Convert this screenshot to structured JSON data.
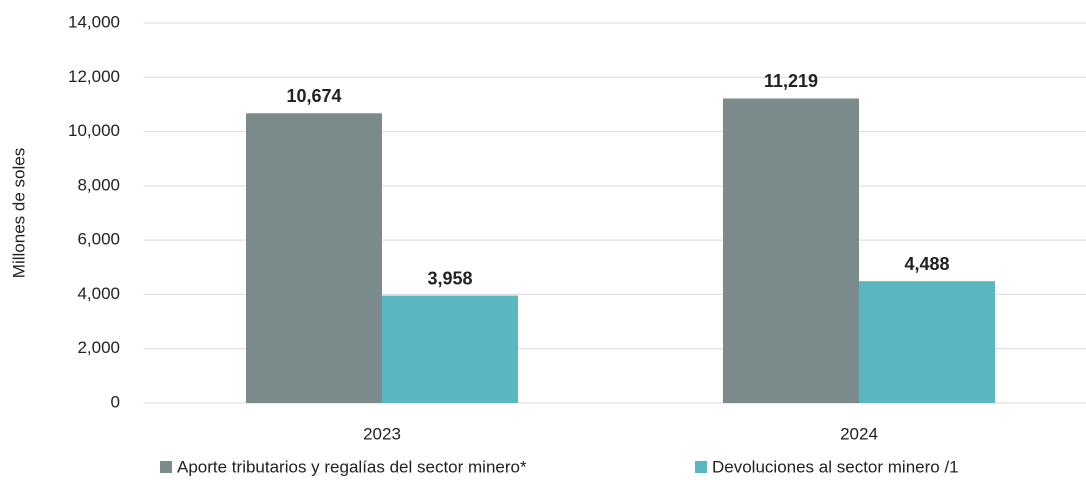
{
  "chart_data": {
    "type": "bar",
    "y_label": "Millones de soles",
    "categories": [
      "2023",
      "2024"
    ],
    "series": [
      {
        "name": "Aporte tributarios y regalías del sector minero*",
        "color": "#7b8b8b",
        "values": [
          10674,
          11219
        ],
        "value_labels": [
          "10,674",
          "11,219"
        ]
      },
      {
        "name": "Devoluciones al sector minero /1",
        "color": "#5ab7c2",
        "values": [
          3958,
          4488
        ],
        "value_labels": [
          "3,958",
          "4,488"
        ]
      }
    ],
    "ylim": [
      0,
      14000
    ],
    "yticks": [
      0,
      {
        "value": 2000,
        "label": "2,000"
      },
      {
        "value": 4000,
        "label": "4,000"
      },
      {
        "value": 6000,
        "label": "6,000"
      },
      {
        "value": 8000,
        "label": "8,000"
      },
      {
        "value": 10000,
        "label": "10,000"
      },
      {
        "value": 12000,
        "label": "12,000"
      },
      {
        "value": 14000,
        "label": "14,000"
      }
    ],
    "grid": true,
    "legend": "bottom"
  }
}
